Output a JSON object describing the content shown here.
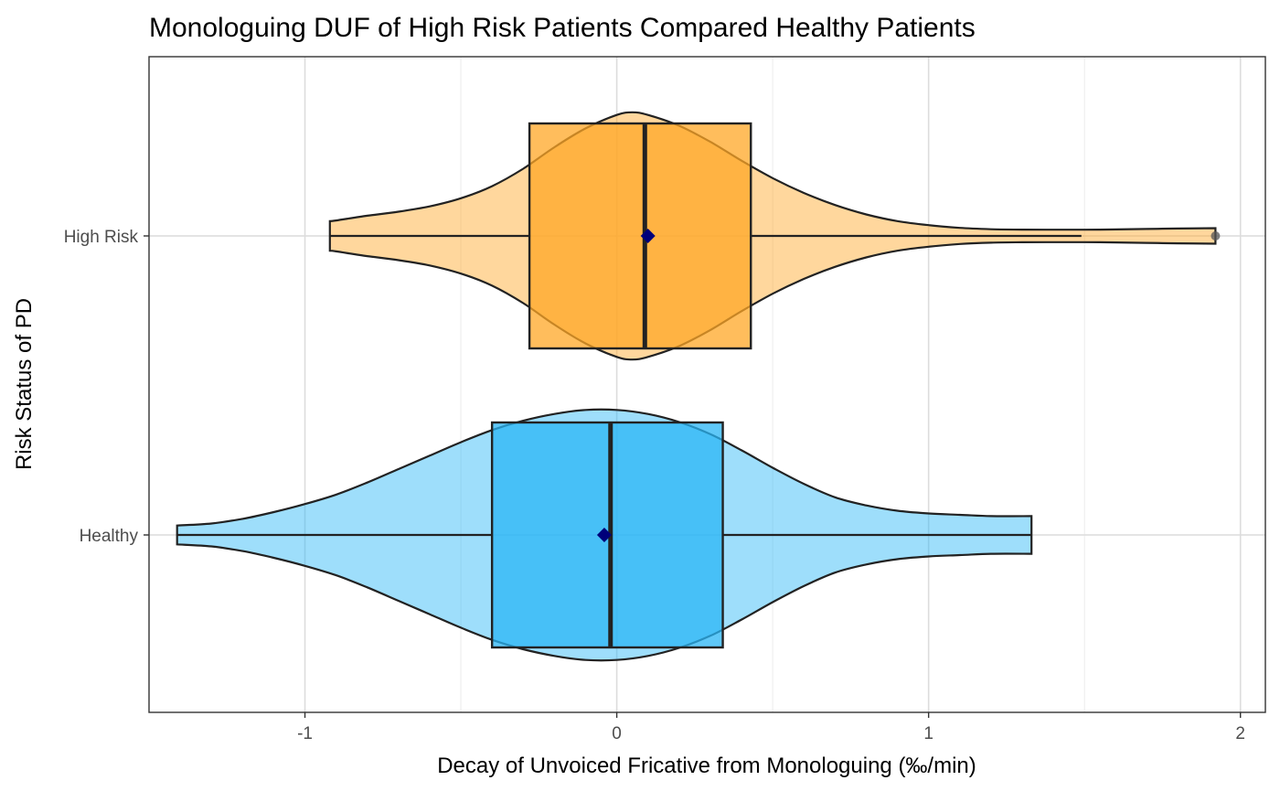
{
  "chart_data": {
    "type": "violin",
    "title": "Monologuing DUF of High Risk Patients Compared Healthy Patients",
    "xlabel": "Decay of Unvoiced Fricative from Monologuing (‰/min)",
    "ylabel": "Risk Status of PD",
    "xlim": [
      -1.5,
      2.08
    ],
    "x_ticks": [
      -1,
      0,
      1,
      2
    ],
    "x_tick_labels": [
      "-1",
      "0",
      "1",
      "2"
    ],
    "grid": true,
    "categories": [
      "High Risk",
      "Healthy"
    ],
    "series": [
      {
        "category": "High Risk",
        "violin_color": "#FFA726",
        "box_color": "#FFA726",
        "box": {
          "lower_whisker": -0.92,
          "q1": -0.28,
          "median": 0.09,
          "q3": 0.43,
          "upper_whisker": 1.49
        },
        "mean": 0.1,
        "outliers": [
          1.92
        ],
        "density": [
          [
            -0.92,
            0.11
          ],
          [
            -0.9,
            0.115
          ],
          [
            -0.8,
            0.15
          ],
          [
            -0.7,
            0.18
          ],
          [
            -0.6,
            0.22
          ],
          [
            -0.5,
            0.28
          ],
          [
            -0.4,
            0.37
          ],
          [
            -0.3,
            0.5
          ],
          [
            -0.2,
            0.66
          ],
          [
            -0.1,
            0.8
          ],
          [
            0.0,
            0.9
          ],
          [
            0.05,
            0.92
          ],
          [
            0.1,
            0.9
          ],
          [
            0.2,
            0.82
          ],
          [
            0.3,
            0.7
          ],
          [
            0.4,
            0.56
          ],
          [
            0.5,
            0.43
          ],
          [
            0.6,
            0.32
          ],
          [
            0.7,
            0.23
          ],
          [
            0.8,
            0.16
          ],
          [
            0.9,
            0.11
          ],
          [
            1.0,
            0.08
          ],
          [
            1.1,
            0.06
          ],
          [
            1.2,
            0.05
          ],
          [
            1.3,
            0.047
          ],
          [
            1.4,
            0.046
          ],
          [
            1.5,
            0.046
          ],
          [
            1.6,
            0.048
          ],
          [
            1.7,
            0.052
          ],
          [
            1.8,
            0.055
          ],
          [
            1.92,
            0.058
          ]
        ]
      },
      {
        "category": "Healthy",
        "violin_color": "#29B6F6",
        "box_color": "#29B6F6",
        "box": {
          "lower_whisker": -1.41,
          "q1": -0.4,
          "median": -0.02,
          "q3": 0.34,
          "upper_whisker": 1.33
        },
        "mean": -0.04,
        "outliers": [],
        "density": [
          [
            -1.41,
            0.07
          ],
          [
            -1.3,
            0.085
          ],
          [
            -1.2,
            0.12
          ],
          [
            -1.1,
            0.17
          ],
          [
            -1.0,
            0.23
          ],
          [
            -0.9,
            0.3
          ],
          [
            -0.8,
            0.39
          ],
          [
            -0.7,
            0.49
          ],
          [
            -0.6,
            0.59
          ],
          [
            -0.5,
            0.69
          ],
          [
            -0.4,
            0.78
          ],
          [
            -0.3,
            0.85
          ],
          [
            -0.2,
            0.9
          ],
          [
            -0.1,
            0.93
          ],
          [
            0.0,
            0.93
          ],
          [
            0.1,
            0.9
          ],
          [
            0.2,
            0.84
          ],
          [
            0.3,
            0.75
          ],
          [
            0.4,
            0.63
          ],
          [
            0.5,
            0.5
          ],
          [
            0.6,
            0.38
          ],
          [
            0.7,
            0.28
          ],
          [
            0.8,
            0.22
          ],
          [
            0.9,
            0.18
          ],
          [
            1.0,
            0.16
          ],
          [
            1.1,
            0.15
          ],
          [
            1.2,
            0.14
          ],
          [
            1.33,
            0.14
          ]
        ]
      }
    ],
    "mean_marker_color": "#00007A",
    "outlier_color": "#555555"
  }
}
